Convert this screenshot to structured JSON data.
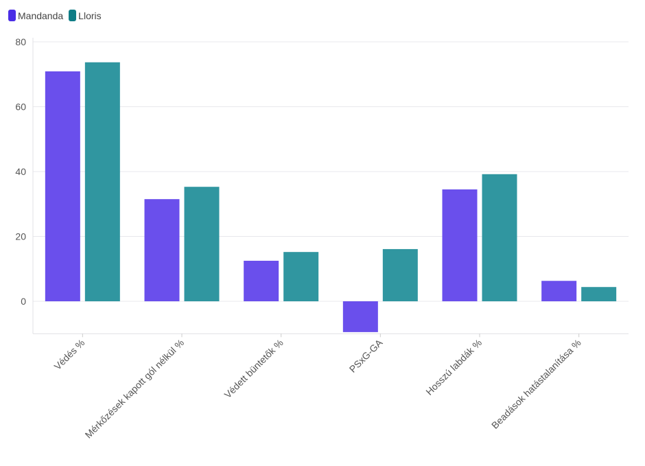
{
  "chart_data": {
    "type": "bar",
    "title": "",
    "xlabel": "",
    "ylabel": "",
    "categories": [
      "Védés %",
      "Mérkőzések kapott gól nélkül %",
      "Védett büntetők %",
      "PSxG-GA",
      "Hosszú labdák %",
      "Beadások hatástalanítása %"
    ],
    "series": [
      {
        "name": "Mandanda",
        "color": "#6a4fec",
        "legend_color": "#4a2ee6",
        "values": [
          70.9,
          31.5,
          12.5,
          -9.5,
          34.5,
          6.3
        ]
      },
      {
        "name": "Lloris",
        "color": "#3096a0",
        "legend_color": "#0f7d86",
        "values": [
          73.7,
          35.3,
          15.2,
          16.1,
          39.2,
          4.4
        ]
      }
    ],
    "ylim": [
      -10,
      80
    ],
    "yticks": [
      0,
      20,
      40,
      60,
      80
    ],
    "grid": true,
    "legend": "top-left"
  }
}
